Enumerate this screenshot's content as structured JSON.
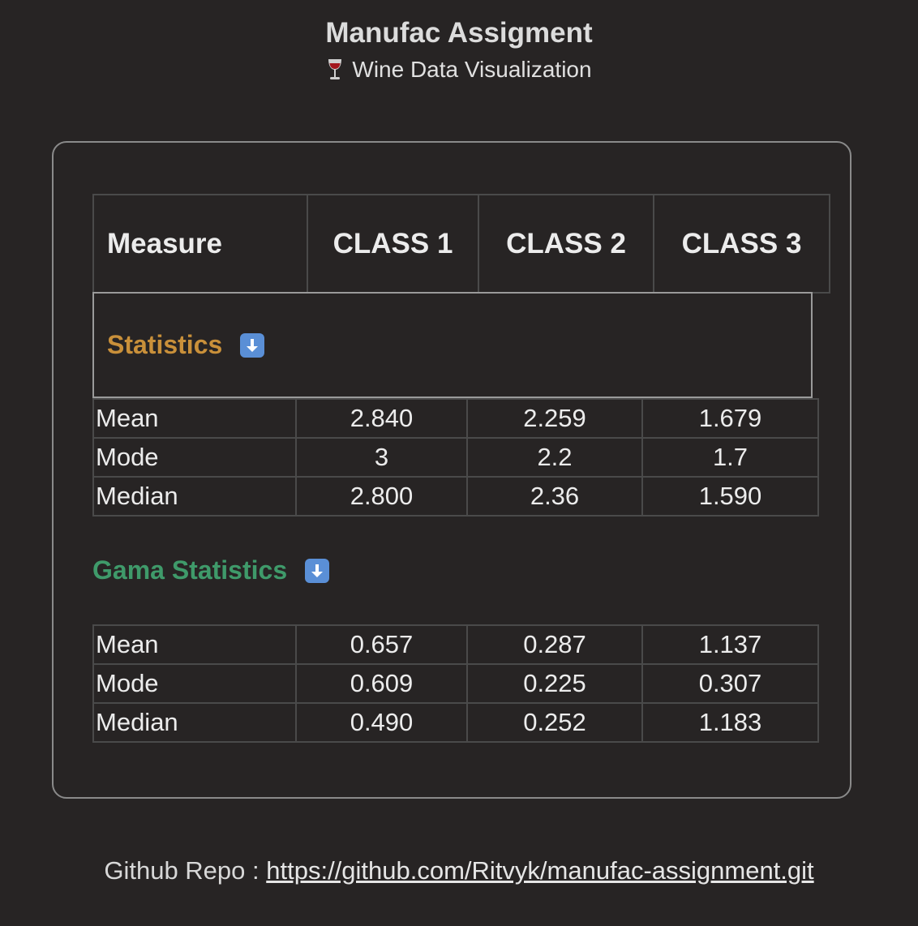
{
  "header": {
    "title": "Manufac Assigment",
    "subtitle": "Wine Data Visualization",
    "subtitle_icon": "wine-glass-icon"
  },
  "table": {
    "columns": [
      "Measure",
      "CLASS 1",
      "CLASS 2",
      "CLASS 3"
    ]
  },
  "sections": {
    "statistics": {
      "title": "Statistics",
      "icon": "down-arrow-icon",
      "color": "#c9903a",
      "rows": [
        {
          "label": "Mean",
          "values": [
            "2.840",
            "2.259",
            "1.679"
          ]
        },
        {
          "label": "Mode",
          "values": [
            "3",
            "2.2",
            "1.7"
          ]
        },
        {
          "label": "Median",
          "values": [
            "2.800",
            "2.36",
            "1.590"
          ]
        }
      ]
    },
    "gama": {
      "title": "Gama Statistics",
      "icon": "down-arrow-icon",
      "color": "#3f9a6a",
      "rows": [
        {
          "label": "Mean",
          "values": [
            "0.657",
            "0.287",
            "1.137"
          ]
        },
        {
          "label": "Mode",
          "values": [
            "0.609",
            "0.225",
            "0.307"
          ]
        },
        {
          "label": "Median",
          "values": [
            "0.490",
            "0.252",
            "1.183"
          ]
        }
      ]
    }
  },
  "footer": {
    "label": "Github Repo : ",
    "link": "https://github.com/Ritvyk/manufac-assignment.git"
  }
}
